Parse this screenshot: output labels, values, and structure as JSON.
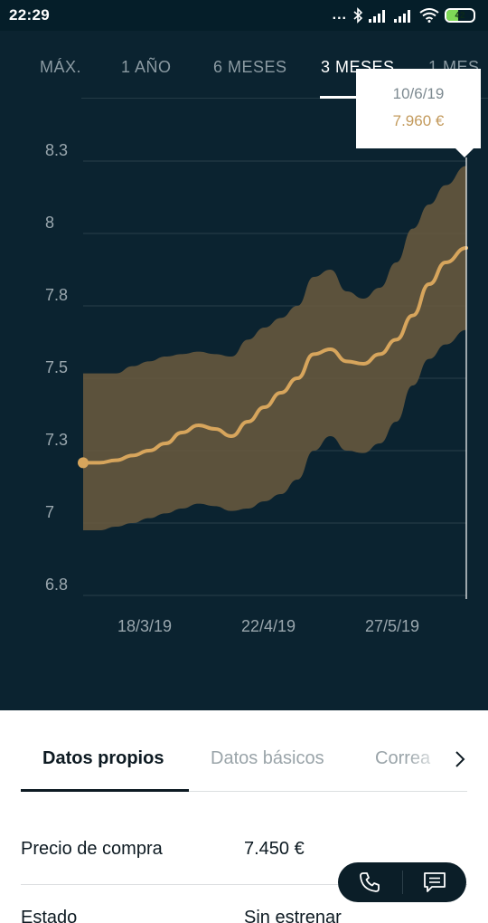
{
  "status_bar": {
    "time": "22:29",
    "dots": "...",
    "battery": "42"
  },
  "range_tabs": [
    {
      "label": "MÁX."
    },
    {
      "label": "1 AÑO"
    },
    {
      "label": "6 MESES"
    },
    {
      "label": "3 MESES"
    },
    {
      "label": "1 MES"
    }
  ],
  "active_range": "3 MESES",
  "tooltip": {
    "date": "10/6/19",
    "value": "7.960 €"
  },
  "chart_data": {
    "type": "line",
    "title": "",
    "xlabel": "",
    "ylabel": "",
    "ylim": [
      6.8,
      8.3
    ],
    "y_ticks": [
      "8.3",
      "8",
      "7.8",
      "7.5",
      "7.3",
      "7",
      "6.8"
    ],
    "x_ticks": [
      "18/3/19",
      "22/4/19",
      "27/5/19"
    ],
    "grid": true,
    "series": [
      {
        "x": [
          0,
          4,
          8,
          12,
          16,
          20,
          24,
          28,
          32,
          36,
          40,
          44,
          48,
          52,
          56,
          60,
          64,
          68,
          72,
          76,
          80,
          84,
          88,
          93
        ],
        "values": [
          7.25,
          7.25,
          7.26,
          7.28,
          7.3,
          7.32,
          7.35,
          7.37,
          7.36,
          7.34,
          7.38,
          7.42,
          7.46,
          7.5,
          7.6,
          7.62,
          7.57,
          7.56,
          7.6,
          7.66,
          7.76,
          7.86,
          7.92,
          7.96
        ]
      }
    ],
    "band": {
      "upper": [
        7.52,
        7.52,
        7.52,
        7.55,
        7.57,
        7.59,
        7.6,
        7.61,
        7.6,
        7.59,
        7.66,
        7.71,
        7.75,
        7.8,
        7.88,
        7.9,
        7.84,
        7.82,
        7.85,
        7.92,
        8.02,
        8.12,
        8.2,
        8.28
      ],
      "lower": [
        6.98,
        6.98,
        6.99,
        7.0,
        7.02,
        7.04,
        7.06,
        7.08,
        7.07,
        7.05,
        7.06,
        7.09,
        7.12,
        7.18,
        7.3,
        7.34,
        7.3,
        7.29,
        7.32,
        7.38,
        7.48,
        7.58,
        7.64,
        7.7
      ]
    },
    "colors": {
      "line": "#d7a55c",
      "band": "#6b5a3e",
      "grid": "#2a3f4a",
      "background": "#0b2330"
    }
  },
  "detail_tabs": [
    {
      "label": "Datos propios"
    },
    {
      "label": "Datos básicos"
    },
    {
      "label": "Correa"
    }
  ],
  "details": [
    {
      "label": "Precio de compra",
      "value": "7.450 €"
    },
    {
      "label": "Estado",
      "value": "Sin estrenar"
    }
  ],
  "icons": {
    "phone": "phone-icon",
    "chat": "chat-icon",
    "chevron": "chevron-right-icon"
  }
}
